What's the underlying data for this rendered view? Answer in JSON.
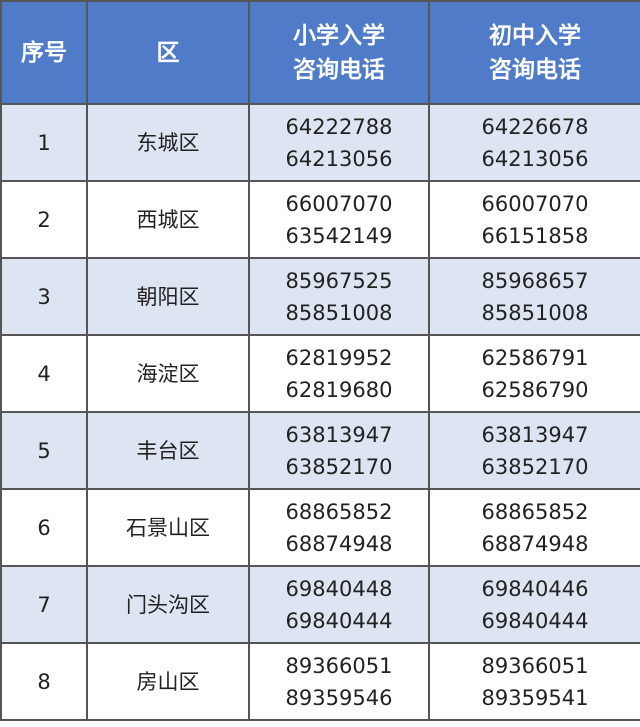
{
  "table": {
    "header": [
      [
        "序号"
      ],
      [
        "区"
      ],
      [
        "小学入学",
        "咨询电话"
      ],
      [
        "初中入学",
        "咨询电话"
      ]
    ],
    "rows": [
      [
        [
          "1"
        ],
        [
          "东城区"
        ],
        [
          "64222788",
          "64213056"
        ],
        [
          "64226678",
          "64213056"
        ]
      ],
      [
        [
          "2"
        ],
        [
          "西城区"
        ],
        [
          "66007070",
          "63542149"
        ],
        [
          "66007070",
          "66151858"
        ]
      ],
      [
        [
          "3"
        ],
        [
          "朝阳区"
        ],
        [
          "85967525",
          "85851008"
        ],
        [
          "85968657",
          "85851008"
        ]
      ],
      [
        [
          "4"
        ],
        [
          "海淀区"
        ],
        [
          "62819952",
          "62819680"
        ],
        [
          "62586791",
          "62586790"
        ]
      ],
      [
        [
          "5"
        ],
        [
          "丰台区"
        ],
        [
          "63813947",
          "63852170"
        ],
        [
          "63813947",
          "63852170"
        ]
      ],
      [
        [
          "6"
        ],
        [
          "石景山区"
        ],
        [
          "68865852",
          "68874948"
        ],
        [
          "68865852",
          "68874948"
        ]
      ],
      [
        [
          "7"
        ],
        [
          "门头沟区"
        ],
        [
          "69840448",
          "69840444"
        ],
        [
          "69840446",
          "69840444"
        ]
      ],
      [
        [
          "8"
        ],
        [
          "房山区"
        ],
        [
          "89366051",
          "89359546"
        ],
        [
          "89366051",
          "89359541"
        ]
      ]
    ]
  }
}
